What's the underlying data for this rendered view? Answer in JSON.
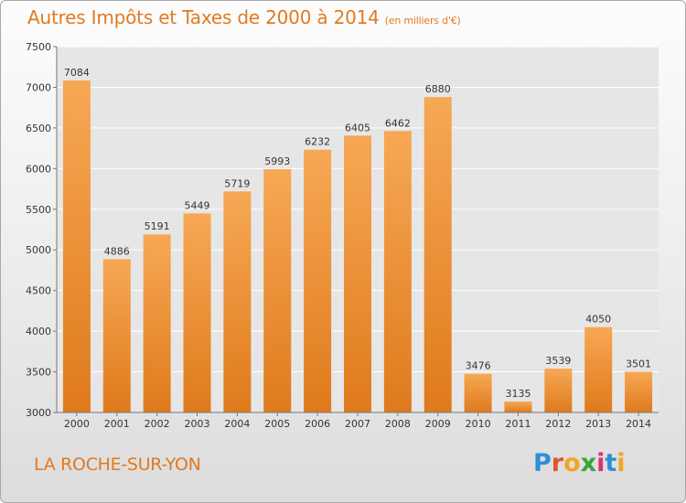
{
  "title": "Autres Impôts et Taxes de 2000 à 2014",
  "subtitle": "(en milliers d'€)",
  "location": "LA ROCHE-SUR-YON",
  "logo": {
    "letters": [
      "P",
      "r",
      "o",
      "x",
      "i",
      "t",
      "i"
    ],
    "colors": [
      "#2e8fd4",
      "#e0552b",
      "#f2a521",
      "#37a536",
      "#d9336e",
      "#2e8fd4",
      "#f2a521"
    ]
  },
  "colors": {
    "accent": "#e07a20",
    "bar_top": "#f7a855",
    "bar_bottom": "#df7a1c"
  },
  "chart_data": {
    "type": "bar",
    "categories": [
      "2000",
      "2001",
      "2002",
      "2003",
      "2004",
      "2005",
      "2006",
      "2007",
      "2008",
      "2009",
      "2010",
      "2011",
      "2012",
      "2013",
      "2014"
    ],
    "values": [
      7084,
      4886,
      5191,
      5449,
      5719,
      5993,
      6232,
      6405,
      6462,
      6880,
      3476,
      3135,
      3539,
      4050,
      3501
    ],
    "ylim": [
      3000,
      7500
    ],
    "yticks": [
      3000,
      3500,
      4000,
      4500,
      5000,
      5500,
      6000,
      6500,
      7000,
      7500
    ],
    "grid": true
  }
}
